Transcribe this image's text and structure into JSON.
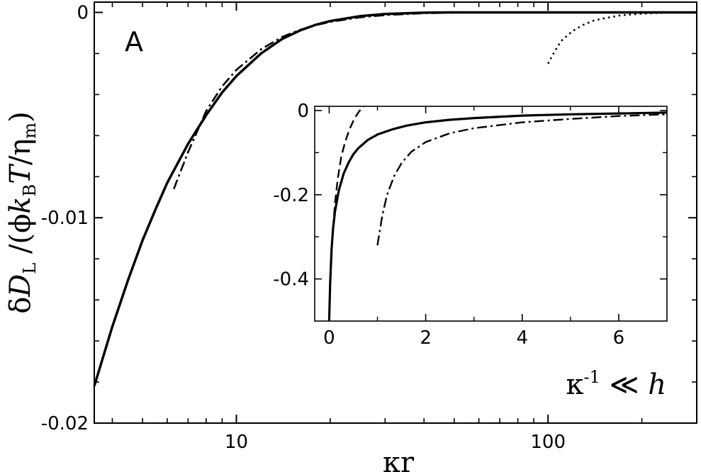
{
  "chart_data": [
    {
      "id": "main",
      "type": "line",
      "panel_label": "A",
      "x_scale": "log",
      "xlim": [
        3.5,
        300
      ],
      "ylim": [
        -0.02,
        0.0005
      ],
      "xticks": [
        10,
        100
      ],
      "xtick_labels": [
        "10",
        "100"
      ],
      "yticks": [
        0,
        -0.01,
        -0.02
      ],
      "ytick_labels": [
        "0",
        "-0.01",
        "-0.02"
      ],
      "xlabel": "κr",
      "ylabel_parts": [
        "δ",
        "D",
        "L",
        " /(ϕ",
        "k",
        "B",
        "T",
        "/",
        "η",
        "m",
        ")"
      ],
      "annotation": {
        "text": "κ",
        "sup": "-1",
        "rel": " ≪ ",
        "var": "h"
      },
      "colors": {
        "line": "#000000",
        "background": "#ffffff"
      },
      "series": [
        {
          "style": "solid",
          "x": [
            3.5,
            4,
            4.5,
            5,
            5.5,
            6,
            7,
            8,
            9,
            10,
            12,
            14,
            16,
            18,
            20,
            25,
            30,
            40,
            50,
            60,
            80,
            100,
            150,
            200,
            300
          ],
          "y": [
            -0.0182,
            -0.0153,
            -0.013,
            -0.0111,
            -0.0096,
            -0.0083,
            -0.0064,
            -0.005,
            -0.0039,
            -0.0031,
            -0.002,
            -0.0013,
            -0.00088,
            -0.0006,
            -0.00042,
            -0.00018,
            -8e-05,
            -1.5e-05,
            0,
            0,
            0,
            0,
            0,
            0,
            0
          ]
        },
        {
          "style": "dash-dot",
          "x": [
            6.3,
            7,
            8,
            9,
            10,
            12,
            14,
            16,
            18,
            20,
            25,
            30,
            40,
            50,
            60,
            80,
            100,
            150,
            200,
            300
          ],
          "y": [
            -0.0086,
            -0.0068,
            -0.0048,
            -0.0036,
            -0.0028,
            -0.0018,
            -0.0012,
            -0.00085,
            -0.00062,
            -0.00046,
            -0.00024,
            -0.00013,
            -4e-05,
            -1e-05,
            0,
            0,
            0,
            0,
            0,
            0
          ]
        },
        {
          "style": "dotted",
          "x": [
            100,
            105,
            110,
            120,
            130,
            140,
            150,
            170,
            200,
            250,
            300
          ],
          "y": [
            -0.0025,
            -0.0019,
            -0.0014,
            -0.0009,
            -0.0006,
            -0.0004,
            -0.0003,
            -0.00015,
            -6e-05,
            0,
            0
          ]
        }
      ]
    },
    {
      "id": "inset",
      "type": "line",
      "x_scale": "linear",
      "xlim": [
        -0.3,
        7
      ],
      "ylim": [
        -0.5,
        0.01
      ],
      "xticks": [
        0,
        2,
        4,
        6
      ],
      "xtick_labels": [
        "0",
        "2",
        "4",
        "6"
      ],
      "yticks": [
        0,
        -0.2,
        -0.4
      ],
      "ytick_labels": [
        "0",
        "-0.2",
        "-0.4"
      ],
      "colors": {
        "line": "#000000",
        "background": "#ffffff"
      },
      "series": [
        {
          "style": "solid",
          "x": [
            0.0,
            0.02,
            0.05,
            0.08,
            0.12,
            0.2,
            0.3,
            0.4,
            0.5,
            0.6,
            0.8,
            1.0,
            1.3,
            1.6,
            2.0,
            2.5,
            3.0,
            4.0,
            5.0,
            6.0,
            7.0
          ],
          "y": [
            -0.5,
            -0.41,
            -0.33,
            -0.28,
            -0.24,
            -0.19,
            -0.15,
            -0.124,
            -0.104,
            -0.09,
            -0.07,
            -0.057,
            -0.045,
            -0.036,
            -0.028,
            -0.022,
            -0.018,
            -0.012,
            -0.009,
            -0.007,
            -0.005
          ]
        },
        {
          "style": "dashed",
          "x": [
            0.08,
            0.12,
            0.18,
            0.25,
            0.33,
            0.42,
            0.52,
            0.62,
            0.72
          ],
          "y": [
            -0.28,
            -0.22,
            -0.16,
            -0.11,
            -0.075,
            -0.045,
            -0.02,
            -0.002,
            0.01
          ]
        },
        {
          "style": "dash-dot",
          "x": [
            1.0,
            1.1,
            1.2,
            1.35,
            1.5,
            1.7,
            2.0,
            2.5,
            3.0,
            4.0,
            5.0,
            6.0,
            7.0
          ],
          "y": [
            -0.32,
            -0.25,
            -0.2,
            -0.155,
            -0.125,
            -0.098,
            -0.075,
            -0.054,
            -0.042,
            -0.028,
            -0.02,
            -0.013,
            -0.009
          ]
        }
      ]
    }
  ]
}
